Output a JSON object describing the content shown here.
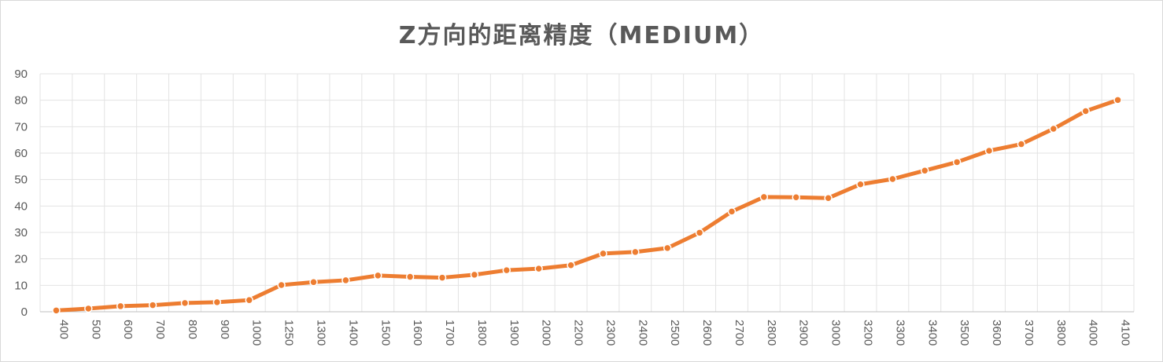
{
  "chart_data": {
    "type": "line",
    "title": "Z方向的距离精度（MEDIUM）",
    "xlabel": "",
    "ylabel": "",
    "categories": [
      "400",
      "500",
      "600",
      "700",
      "800",
      "900",
      "1000",
      "1250",
      "1300",
      "1400",
      "1500",
      "1600",
      "1700",
      "1800",
      "1900",
      "2000",
      "2200",
      "2300",
      "2400",
      "2500",
      "2600",
      "2700",
      "2800",
      "2900",
      "3000",
      "3200",
      "3300",
      "3400",
      "3500",
      "3600",
      "3700",
      "3800",
      "4000",
      "4100"
    ],
    "series": [
      {
        "values": [
          0.5,
          1.2,
          2.1,
          2.5,
          3.3,
          3.6,
          4.4,
          10.1,
          11.2,
          11.9,
          13.7,
          13.2,
          12.9,
          14.0,
          15.7,
          16.3,
          17.6,
          22.0,
          22.6,
          24.1,
          29.9,
          37.9,
          43.4,
          43.3,
          43.0,
          48.2,
          50.2,
          53.4,
          56.6,
          60.9,
          63.4,
          69.2,
          75.9,
          80.1
        ],
        "color": "#ED7D31"
      }
    ],
    "ylim": [
      0,
      90
    ],
    "yticks": [
      0,
      10,
      20,
      30,
      40,
      50,
      60,
      70,
      80,
      90
    ],
    "grid": true,
    "legend": "none"
  }
}
